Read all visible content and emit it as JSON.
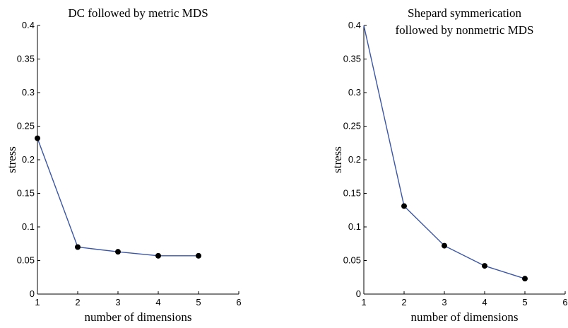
{
  "chart_data": [
    {
      "type": "line",
      "title_lines": [
        "DC followed by metric MDS"
      ],
      "xlabel": "number of dimensions",
      "ylabel": "stress",
      "xlim": [
        1,
        6
      ],
      "ylim": [
        0,
        0.4
      ],
      "xticks": [
        1,
        2,
        3,
        4,
        5,
        6
      ],
      "yticks": [
        0,
        0.05,
        0.1,
        0.15,
        0.2,
        0.25,
        0.3,
        0.35,
        0.4
      ],
      "xtick_labels": [
        "1",
        "2",
        "3",
        "4",
        "5",
        "6"
      ],
      "ytick_labels": [
        "0",
        "0.05",
        "0.1",
        "0.15",
        "0.2",
        "0.25",
        "0.3",
        "0.35",
        "0.4"
      ],
      "grid": false,
      "series": [
        {
          "x": [
            1,
            2,
            3,
            4,
            5
          ],
          "y": [
            0.232,
            0.07,
            0.063,
            0.057,
            0.057
          ]
        }
      ],
      "colors": {
        "line": "#3a55a4",
        "marker": "#000000"
      }
    },
    {
      "type": "line",
      "title_lines": [
        "Shepard symmerication",
        "followed by nonmetric MDS"
      ],
      "xlabel": "number of dimensions",
      "ylabel": "stress",
      "xlim": [
        1,
        6
      ],
      "ylim": [
        0,
        0.4
      ],
      "xticks": [
        1,
        2,
        3,
        4,
        5,
        6
      ],
      "yticks": [
        0,
        0.05,
        0.1,
        0.15,
        0.2,
        0.25,
        0.3,
        0.35,
        0.4
      ],
      "xtick_labels": [
        "1",
        "2",
        "3",
        "4",
        "5",
        "6"
      ],
      "ytick_labels": [
        "0",
        "0.05",
        "0.1",
        "0.15",
        "0.2",
        "0.25",
        "0.3",
        "0.35",
        "0.4"
      ],
      "grid": false,
      "series": [
        {
          "x": [
            1,
            2,
            3,
            4,
            5
          ],
          "y": [
            0.4,
            0.131,
            0.072,
            0.042,
            0.023
          ],
          "markers": [
            false,
            true,
            true,
            true,
            true
          ]
        }
      ],
      "colors": {
        "line": "#3a55a4",
        "marker": "#000000"
      }
    }
  ]
}
